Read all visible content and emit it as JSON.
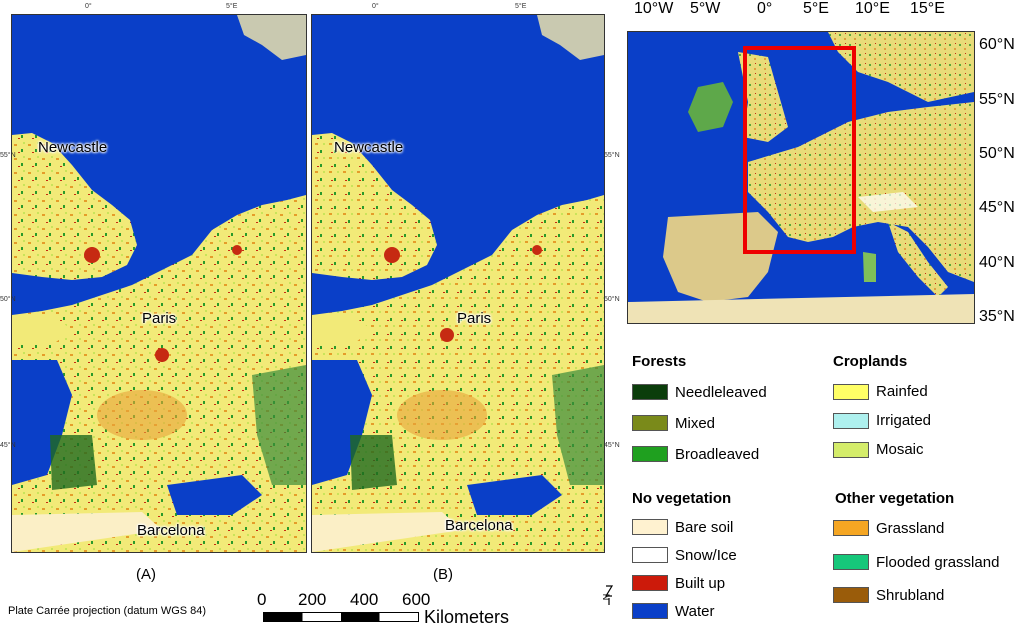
{
  "map_a": {
    "label": "(A)",
    "top_ticks": [
      "0°",
      "5°E"
    ],
    "left_ticks": [
      "55°N",
      "50°N",
      "45°N"
    ],
    "cities": [
      "Newcastle",
      "Paris",
      "Barcelona"
    ]
  },
  "map_b": {
    "label": "(B)",
    "top_ticks": [
      "0°",
      "5°E"
    ],
    "right_ticks": [
      "55°N",
      "50°N",
      "45°N"
    ],
    "cities": [
      "Newcastle",
      "Paris",
      "Barcelona"
    ]
  },
  "overview": {
    "top_ticks": [
      "10°W",
      "5°W",
      "0°",
      "5°E",
      "10°E",
      "15°E"
    ],
    "right_ticks": [
      "60°N",
      "55°N",
      "50°N",
      "45°N",
      "40°N",
      "35°N"
    ],
    "extent_color": "#ee0000"
  },
  "legend": {
    "groups": [
      {
        "title": "Forests",
        "items": [
          {
            "label": "Needleleaved",
            "color": "#0b3d0b"
          },
          {
            "label": "Mixed",
            "color": "#7a8a1a"
          },
          {
            "label": "Broadleaved",
            "color": "#1fa01f"
          }
        ]
      },
      {
        "title": "Croplands",
        "items": [
          {
            "label": "Rainfed",
            "color": "#ffff66"
          },
          {
            "label": "Irrigated",
            "color": "#aef0ee"
          },
          {
            "label": "Mosaic",
            "color": "#d4ec6a"
          }
        ]
      },
      {
        "title": "No vegetation",
        "items": [
          {
            "label": "Bare soil",
            "color": "#fff2d0"
          },
          {
            "label": "Snow/Ice",
            "color": "#ffffff"
          },
          {
            "label": "Built up",
            "color": "#cc1a0a"
          },
          {
            "label": "Water",
            "color": "#0a3fc8"
          }
        ]
      },
      {
        "title": "Other vegetation",
        "items": [
          {
            "label": "Grassland",
            "color": "#f5a623"
          },
          {
            "label": "Flooded grassland",
            "color": "#16c77a"
          },
          {
            "label": "Shrubland",
            "color": "#9a5c0a"
          }
        ]
      }
    ]
  },
  "scalebar": {
    "ticks": [
      "0",
      "200",
      "400",
      "600"
    ],
    "unit": "Kilometers"
  },
  "north_arrow": "N",
  "projection_note": "Plate Carrée projection (datum WGS 84)",
  "colors": {
    "water": "#0a3fc8",
    "land": "#f3e87a",
    "frame": "#333333"
  }
}
